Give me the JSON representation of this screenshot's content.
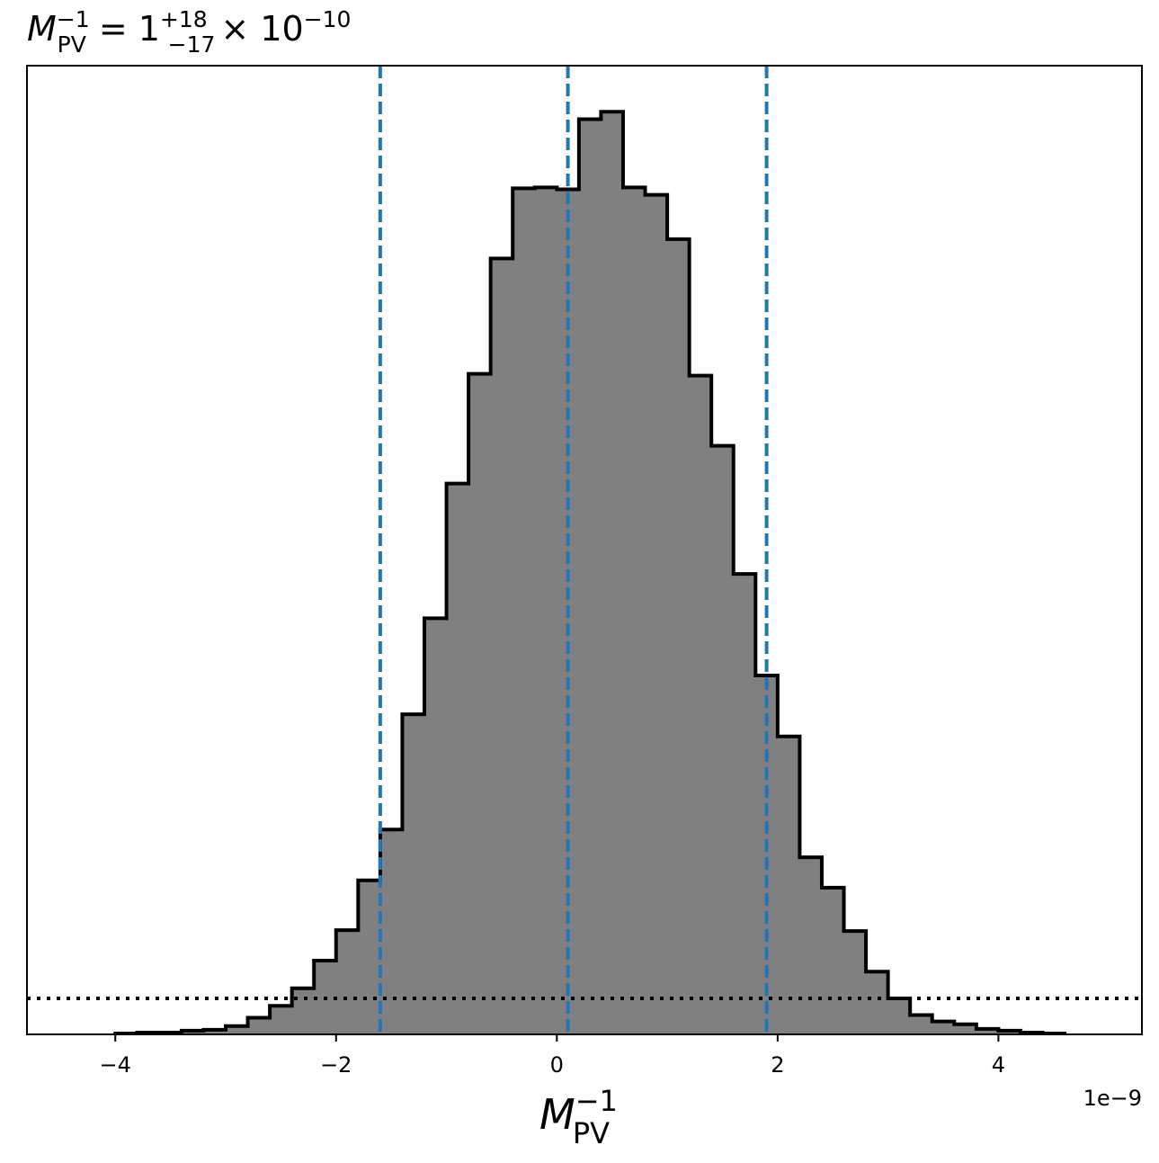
{
  "chart_data": {
    "type": "histogram",
    "title": {
      "symbol": "M",
      "symbol_sup": "−1",
      "symbol_sub": "PV",
      "equals": "=",
      "value": "1",
      "upper_err": "+18",
      "lower_err": "−17",
      "multiplier": "× 10",
      "exponent": "−10"
    },
    "xlabel": {
      "symbol": "M",
      "sup": "−1",
      "sub": "PV"
    },
    "offset_text": "1e−9",
    "x_unit_scale": 1e-09,
    "xlim": [
      -4.8,
      5.3
    ],
    "ylim": [
      0,
      1.05
    ],
    "xticks": [
      {
        "value": -4,
        "label": "−4"
      },
      {
        "value": -2,
        "label": "−2"
      },
      {
        "value": 0,
        "label": "0"
      },
      {
        "value": 2,
        "label": "2"
      },
      {
        "value": 4,
        "label": "4"
      }
    ],
    "bins": {
      "start": -4.0,
      "width": 0.2,
      "heights": [
        0.001,
        0.002,
        0.002,
        0.004,
        0.005,
        0.009,
        0.018,
        0.031,
        0.05,
        0.08,
        0.113,
        0.167,
        0.222,
        0.347,
        0.451,
        0.597,
        0.716,
        0.841,
        0.917,
        0.918,
        0.916,
        0.992,
        1.0,
        0.918,
        0.91,
        0.862,
        0.714,
        0.638,
        0.499,
        0.389,
        0.323,
        0.192,
        0.159,
        0.112,
        0.068,
        0.039,
        0.021,
        0.014,
        0.011,
        0.006,
        0.004,
        0.002,
        0.001
      ],
      "fill_color": "#808080",
      "edge_color": "#000000"
    },
    "vlines": [
      {
        "value": -1.6,
        "style": "dashed",
        "color": "#1f77b4"
      },
      {
        "value": 0.1,
        "style": "dashed",
        "color": "#1f77b4"
      },
      {
        "value": 1.9,
        "style": "dashed",
        "color": "#1f77b4"
      }
    ],
    "hline": {
      "value": 0.039,
      "style": "dotted",
      "color": "#000000"
    },
    "grid": false,
    "legend": "none"
  }
}
